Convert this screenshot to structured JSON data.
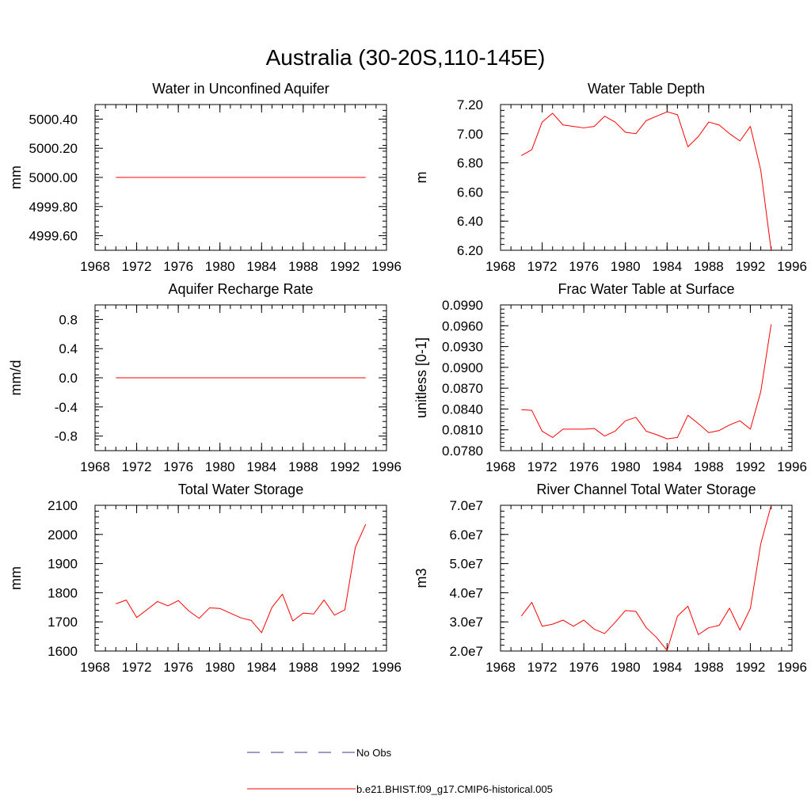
{
  "title": "Australia (30-20S,110-145E)",
  "colors": {
    "model": "#ff0000",
    "obs": "#3a3a8c",
    "axes": "#000000"
  },
  "legend": {
    "obs_label": "No Obs",
    "model_label": "b.e21.BHIST.f09_g17.CMIP6-historical.005"
  },
  "chart_data": [
    {
      "type": "line",
      "title": "Water in Unconfined Aquifer",
      "ylabel": "mm",
      "xlim": [
        1968,
        1996
      ],
      "ylim": [
        4999.5,
        5000.5
      ],
      "xticks": [
        1968,
        1972,
        1976,
        1980,
        1984,
        1988,
        1992,
        1996
      ],
      "xtick_labels": [
        "1968",
        "1972",
        "1976",
        "1980",
        "1984",
        "1988",
        "1992",
        "1996"
      ],
      "yticks": [
        4999.6,
        4999.8,
        5000.0,
        5000.2,
        5000.4
      ],
      "ytick_labels": [
        "4999.60",
        "4999.80",
        "5000.00",
        "5000.20",
        "5000.40"
      ],
      "x": [
        1970,
        1971,
        1972,
        1973,
        1974,
        1975,
        1976,
        1977,
        1978,
        1979,
        1980,
        1981,
        1982,
        1983,
        1984,
        1985,
        1986,
        1987,
        1988,
        1989,
        1990,
        1991,
        1992,
        1993,
        1994
      ],
      "series": [
        {
          "values": [
            5000,
            5000,
            5000,
            5000,
            5000,
            5000,
            5000,
            5000,
            5000,
            5000,
            5000,
            5000,
            5000,
            5000,
            5000,
            5000,
            5000,
            5000,
            5000,
            5000,
            5000,
            5000,
            5000,
            5000,
            5000
          ]
        }
      ]
    },
    {
      "type": "line",
      "title": "Water Table Depth",
      "ylabel": "m",
      "xlim": [
        1968,
        1996
      ],
      "ylim": [
        6.2,
        7.2
      ],
      "xticks": [
        1968,
        1972,
        1976,
        1980,
        1984,
        1988,
        1992,
        1996
      ],
      "xtick_labels": [
        "1968",
        "1972",
        "1976",
        "1980",
        "1984",
        "1988",
        "1992",
        "1996"
      ],
      "yticks": [
        6.2,
        6.4,
        6.6,
        6.8,
        7.0,
        7.2
      ],
      "ytick_labels": [
        "6.20",
        "6.40",
        "6.60",
        "6.80",
        "7.00",
        "7.20"
      ],
      "x": [
        1970,
        1971,
        1972,
        1973,
        1974,
        1975,
        1976,
        1977,
        1978,
        1979,
        1980,
        1981,
        1982,
        1983,
        1984,
        1985,
        1986,
        1987,
        1988,
        1989,
        1990,
        1991,
        1992,
        1993,
        1994
      ],
      "series": [
        {
          "values": [
            6.85,
            6.89,
            7.08,
            7.14,
            7.06,
            7.05,
            7.04,
            7.05,
            7.12,
            7.08,
            7.01,
            7.0,
            7.09,
            7.12,
            7.15,
            7.13,
            6.91,
            6.98,
            7.08,
            7.06,
            7.0,
            6.95,
            7.05,
            6.75,
            6.2
          ]
        }
      ]
    },
    {
      "type": "line",
      "title": "Aquifer Recharge Rate",
      "ylabel": "mm/d",
      "xlim": [
        1968,
        1996
      ],
      "ylim": [
        -1.0,
        1.0
      ],
      "xticks": [
        1968,
        1972,
        1976,
        1980,
        1984,
        1988,
        1992,
        1996
      ],
      "xtick_labels": [
        "1968",
        "1972",
        "1976",
        "1980",
        "1984",
        "1988",
        "1992",
        "1996"
      ],
      "yticks": [
        -0.8,
        -0.4,
        0.0,
        0.4,
        0.8
      ],
      "ytick_labels": [
        "-0.8",
        "-0.4",
        "0.0",
        "0.4",
        "0.8"
      ],
      "x": [
        1970,
        1971,
        1972,
        1973,
        1974,
        1975,
        1976,
        1977,
        1978,
        1979,
        1980,
        1981,
        1982,
        1983,
        1984,
        1985,
        1986,
        1987,
        1988,
        1989,
        1990,
        1991,
        1992,
        1993,
        1994
      ],
      "series": [
        {
          "values": [
            0,
            0,
            0,
            0,
            0,
            0,
            0,
            0,
            0,
            0,
            0,
            0,
            0,
            0,
            0,
            0,
            0,
            0,
            0,
            0,
            0,
            0,
            0,
            0,
            0
          ]
        }
      ]
    },
    {
      "type": "line",
      "title": "Frac Water Table at Surface",
      "ylabel": "unitless [0-1]",
      "xlim": [
        1968,
        1996
      ],
      "ylim": [
        0.078,
        0.099
      ],
      "xticks": [
        1968,
        1972,
        1976,
        1980,
        1984,
        1988,
        1992,
        1996
      ],
      "xtick_labels": [
        "1968",
        "1972",
        "1976",
        "1980",
        "1984",
        "1988",
        "1992",
        "1996"
      ],
      "yticks": [
        0.078,
        0.081,
        0.084,
        0.087,
        0.09,
        0.093,
        0.096,
        0.099
      ],
      "ytick_labels": [
        "0.0780",
        "0.0810",
        "0.0840",
        "0.0870",
        "0.0900",
        "0.0930",
        "0.0960",
        "0.0990"
      ],
      "x": [
        1970,
        1971,
        1972,
        1973,
        1974,
        1975,
        1976,
        1977,
        1978,
        1979,
        1980,
        1981,
        1982,
        1983,
        1984,
        1985,
        1986,
        1987,
        1988,
        1989,
        1990,
        1991,
        1992,
        1993,
        1994
      ],
      "series": [
        {
          "values": [
            0.0839,
            0.0838,
            0.0808,
            0.0799,
            0.0811,
            0.0811,
            0.0811,
            0.0812,
            0.0801,
            0.0808,
            0.0823,
            0.0828,
            0.0808,
            0.0803,
            0.0797,
            0.0799,
            0.0831,
            0.0819,
            0.0806,
            0.0809,
            0.0817,
            0.0823,
            0.0811,
            0.0865,
            0.0962
          ]
        }
      ]
    },
    {
      "type": "line",
      "title": "Total Water Storage",
      "ylabel": "mm",
      "xlim": [
        1968,
        1996
      ],
      "ylim": [
        1600,
        2100
      ],
      "xticks": [
        1968,
        1972,
        1976,
        1980,
        1984,
        1988,
        1992,
        1996
      ],
      "xtick_labels": [
        "1968",
        "1972",
        "1976",
        "1980",
        "1984",
        "1988",
        "1992",
        "1996"
      ],
      "yticks": [
        1600,
        1700,
        1800,
        1900,
        2000,
        2100
      ],
      "ytick_labels": [
        "1600",
        "1700",
        "1800",
        "1900",
        "2000",
        "2100"
      ],
      "x": [
        1970,
        1971,
        1972,
        1973,
        1974,
        1975,
        1976,
        1977,
        1978,
        1979,
        1980,
        1981,
        1982,
        1983,
        1984,
        1985,
        1986,
        1987,
        1988,
        1989,
        1990,
        1991,
        1992,
        1993,
        1994
      ],
      "series": [
        {
          "values": [
            1762,
            1775,
            1715,
            1742,
            1770,
            1755,
            1773,
            1738,
            1712,
            1748,
            1746,
            1730,
            1714,
            1705,
            1663,
            1750,
            1795,
            1703,
            1730,
            1727,
            1775,
            1723,
            1741,
            1955,
            2035
          ]
        }
      ]
    },
    {
      "type": "line",
      "title": "River Channel Total Water Storage",
      "ylabel": "m3",
      "xlim": [
        1968,
        1996
      ],
      "ylim": [
        20000000,
        70000000
      ],
      "xticks": [
        1968,
        1972,
        1976,
        1980,
        1984,
        1988,
        1992,
        1996
      ],
      "xtick_labels": [
        "1968",
        "1972",
        "1976",
        "1980",
        "1984",
        "1988",
        "1992",
        "1996"
      ],
      "yticks": [
        20000000,
        30000000,
        40000000,
        50000000,
        60000000,
        70000000
      ],
      "ytick_labels": [
        "2.0e7",
        "3.0e7",
        "4.0e7",
        "5.0e7",
        "6.0e7",
        "7.0e7"
      ],
      "x": [
        1970,
        1971,
        1972,
        1973,
        1974,
        1975,
        1976,
        1977,
        1978,
        1979,
        1980,
        1981,
        1982,
        1983,
        1984,
        1985,
        1986,
        1987,
        1988,
        1989,
        1990,
        1991,
        1992,
        1993,
        1994
      ],
      "series": [
        {
          "values": [
            32000000,
            36700000,
            28500000,
            29200000,
            30600000,
            28500000,
            30600000,
            27500000,
            26000000,
            29800000,
            33900000,
            33600000,
            28000000,
            24600000,
            20200000,
            32000000,
            35400000,
            25600000,
            28000000,
            28800000,
            34700000,
            27200000,
            34600000,
            56800000,
            70000000
          ]
        }
      ]
    }
  ]
}
